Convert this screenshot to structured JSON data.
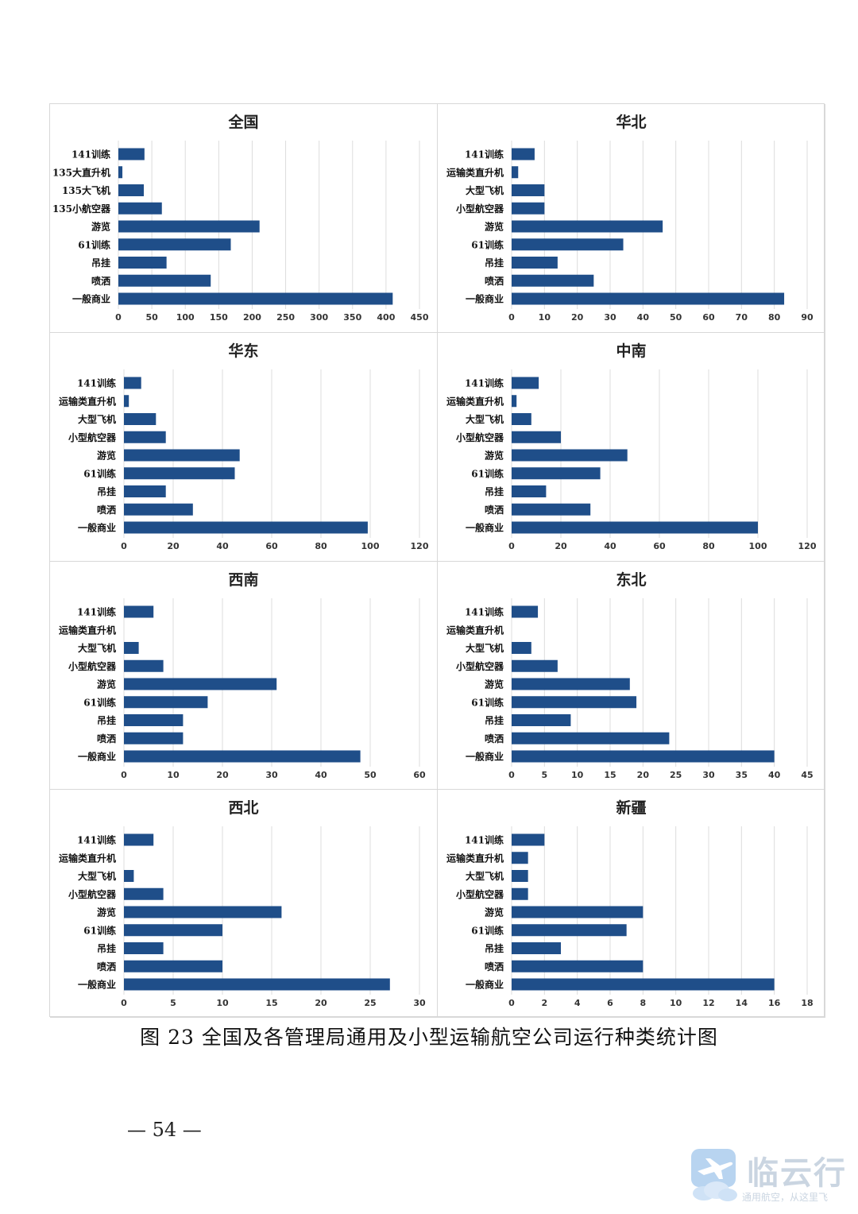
{
  "caption": "图 23 全国及各管理局通用及小型运输航空公司运行种类统计图",
  "page_number": "— 54 —",
  "watermark": {
    "brand": "临云行",
    "subtitle": "通用航空，从这里飞",
    "icon": "airplane-cloud-logo-icon"
  },
  "colors": {
    "bar": "#1f4e89",
    "grid": "#dcdcdc",
    "text": "#111111"
  },
  "chart_data": [
    {
      "id": "national",
      "type": "bar",
      "orientation": "horizontal",
      "title": "全国",
      "categories": [
        "141训练",
        "135大直升机",
        "135大飞机",
        "135小航空器",
        "游览",
        "61训练",
        "吊挂",
        "喷洒",
        "一般商业"
      ],
      "values": [
        39,
        6,
        38,
        65,
        211,
        168,
        72,
        138,
        410
      ],
      "xlim": [
        0,
        450
      ],
      "xticks": [
        0,
        50,
        100,
        150,
        200,
        250,
        300,
        350,
        400,
        450
      ],
      "grid": true
    },
    {
      "id": "north-china",
      "type": "bar",
      "orientation": "horizontal",
      "title": "华北",
      "categories": [
        "141训练",
        "运输类直升机",
        "大型飞机",
        "小型航空器",
        "游览",
        "61训练",
        "吊挂",
        "喷洒",
        "一般商业"
      ],
      "values": [
        7,
        2,
        10,
        10,
        46,
        34,
        14,
        25,
        83
      ],
      "xlim": [
        0,
        90
      ],
      "xticks": [
        0,
        10,
        20,
        30,
        40,
        50,
        60,
        70,
        80,
        90
      ],
      "grid": true
    },
    {
      "id": "east-china",
      "type": "bar",
      "orientation": "horizontal",
      "title": "华东",
      "categories": [
        "141训练",
        "运输类直升机",
        "大型飞机",
        "小型航空器",
        "游览",
        "61训练",
        "吊挂",
        "喷洒",
        "一般商业"
      ],
      "values": [
        7,
        2,
        13,
        17,
        47,
        45,
        17,
        28,
        99
      ],
      "xlim": [
        0,
        120
      ],
      "xticks": [
        0,
        20,
        40,
        60,
        80,
        100,
        120
      ],
      "grid": true
    },
    {
      "id": "central-south",
      "type": "bar",
      "orientation": "horizontal",
      "title": "中南",
      "categories": [
        "141训练",
        "运输类直升机",
        "大型飞机",
        "小型航空器",
        "游览",
        "61训练",
        "吊挂",
        "喷洒",
        "一般商业"
      ],
      "values": [
        11,
        2,
        8,
        20,
        47,
        36,
        14,
        32,
        100
      ],
      "xlim": [
        0,
        120
      ],
      "xticks": [
        0,
        20,
        40,
        60,
        80,
        100,
        120
      ],
      "grid": true
    },
    {
      "id": "southwest",
      "type": "bar",
      "orientation": "horizontal",
      "title": "西南",
      "categories": [
        "141训练",
        "运输类直升机",
        "大型飞机",
        "小型航空器",
        "游览",
        "61训练",
        "吊挂",
        "喷洒",
        "一般商业"
      ],
      "values": [
        6,
        0,
        3,
        8,
        31,
        17,
        12,
        12,
        48
      ],
      "xlim": [
        0,
        60
      ],
      "xticks": [
        0,
        10,
        20,
        30,
        40,
        50,
        60
      ],
      "grid": true
    },
    {
      "id": "northeast",
      "type": "bar",
      "orientation": "horizontal",
      "title": "东北",
      "categories": [
        "141训练",
        "运输类直升机",
        "大型飞机",
        "小型航空器",
        "游览",
        "61训练",
        "吊挂",
        "喷洒",
        "一般商业"
      ],
      "values": [
        4,
        0,
        3,
        7,
        18,
        19,
        9,
        24,
        40
      ],
      "xlim": [
        0,
        45
      ],
      "xticks": [
        0,
        5,
        10,
        15,
        20,
        25,
        30,
        35,
        40,
        45
      ],
      "grid": true
    },
    {
      "id": "northwest",
      "type": "bar",
      "orientation": "horizontal",
      "title": "西北",
      "categories": [
        "141训练",
        "运输类直升机",
        "大型飞机",
        "小型航空器",
        "游览",
        "61训练",
        "吊挂",
        "喷洒",
        "一般商业"
      ],
      "values": [
        3,
        0,
        1,
        4,
        16,
        10,
        4,
        10,
        27
      ],
      "xlim": [
        0,
        30
      ],
      "xticks": [
        0,
        5,
        10,
        15,
        20,
        25,
        30
      ],
      "grid": true
    },
    {
      "id": "xinjiang",
      "type": "bar",
      "orientation": "horizontal",
      "title": "新疆",
      "categories": [
        "141训练",
        "运输类直升机",
        "大型飞机",
        "小型航空器",
        "游览",
        "61训练",
        "吊挂",
        "喷洒",
        "一般商业"
      ],
      "values": [
        2,
        1,
        1,
        1,
        8,
        7,
        3,
        8,
        16
      ],
      "xlim": [
        0,
        18
      ],
      "xticks": [
        0,
        2,
        4,
        6,
        8,
        10,
        12,
        14,
        16,
        18
      ],
      "grid": true
    }
  ]
}
